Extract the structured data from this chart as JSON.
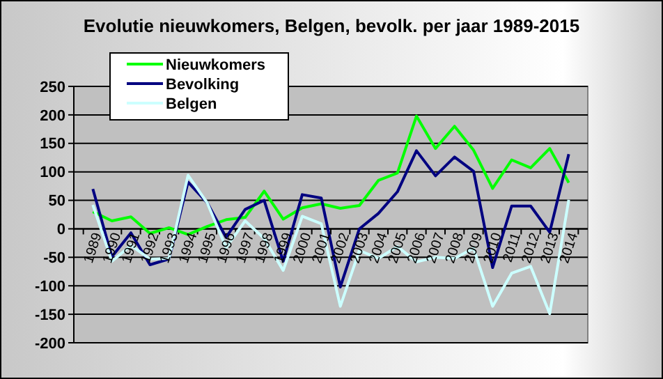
{
  "chart_data": {
    "type": "line",
    "title": "Evolutie nieuwkomers, Belgen, bevolk. per jaar 1989-2015",
    "categories": [
      "1989",
      "1990",
      "1991",
      "1992",
      "1993",
      "1994",
      "1995",
      "1996",
      "1997",
      "1998",
      "1999",
      "2000",
      "2001",
      "2002",
      "2003",
      "2004",
      "2005",
      "2006",
      "2007",
      "2008",
      "2009",
      "2010",
      "2011",
      "2012",
      "2013",
      "2014"
    ],
    "series": [
      {
        "name": "Nieuwkomers",
        "color": "#00ff00",
        "values": [
          30,
          14,
          21,
          -8,
          2,
          -10,
          4,
          16,
          20,
          66,
          17,
          37,
          44,
          36,
          41,
          85,
          98,
          198,
          141,
          180,
          138,
          71,
          121,
          107,
          141,
          81
        ]
      },
      {
        "name": "Bevolking",
        "color": "#000080",
        "values": [
          70,
          -49,
          -7,
          -63,
          -53,
          82,
          46,
          -15,
          34,
          50,
          -57,
          60,
          54,
          -102,
          0,
          27,
          65,
          137,
          93,
          126,
          101,
          -68,
          40,
          40,
          -6,
          131
        ]
      },
      {
        "name": "Belgen",
        "color": "#ccffff",
        "values": [
          42,
          -57,
          -29,
          -53,
          -52,
          94,
          46,
          -33,
          14,
          -17,
          -73,
          22,
          9,
          -136,
          -38,
          -52,
          -31,
          -58,
          -50,
          -52,
          -34,
          -136,
          -78,
          -66,
          -149,
          51
        ]
      }
    ],
    "ylim": [
      -200,
      250
    ],
    "yticks": [
      -200,
      -150,
      -100,
      -50,
      0,
      50,
      100,
      150,
      200,
      250
    ],
    "grid": "y",
    "legend": "top left",
    "marker": "none",
    "line_style": "solid"
  }
}
